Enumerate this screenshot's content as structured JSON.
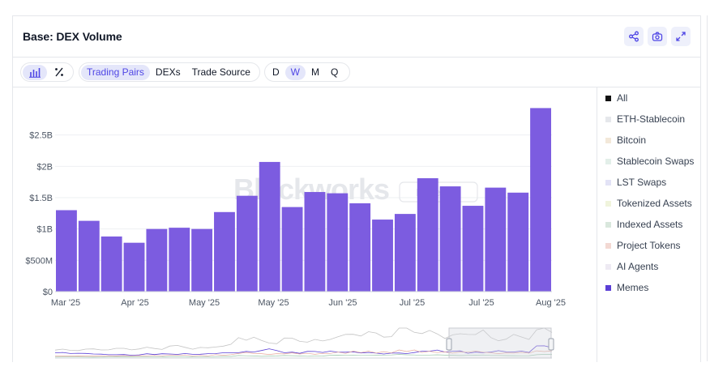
{
  "title": "Base: DEX Volume",
  "toolbar": {
    "groups": [
      {
        "name": "filter",
        "options": [
          "Trading Pairs",
          "DEXs",
          "Trade Source"
        ],
        "selected": "Trading Pairs"
      },
      {
        "name": "interval",
        "options": [
          "D",
          "W",
          "M",
          "Q"
        ],
        "selected": "W"
      }
    ]
  },
  "watermark": {
    "brand": "Blockworks",
    "tag": "Research"
  },
  "legend": {
    "items": [
      {
        "label": "All",
        "color": "#111111"
      },
      {
        "label": "ETH-Stablecoin",
        "color": "#e5e7eb"
      },
      {
        "label": "Bitcoin",
        "color": "#f3e8d9"
      },
      {
        "label": "Stablecoin Swaps",
        "color": "#e3efe9"
      },
      {
        "label": "LST Swaps",
        "color": "#e3e3f6"
      },
      {
        "label": "Tokenized Assets",
        "color": "#f0f4dc"
      },
      {
        "label": "Indexed Assets",
        "color": "#d9e7dd"
      },
      {
        "label": "Project Tokens",
        "color": "#f3d9d3"
      },
      {
        "label": "AI Agents",
        "color": "#eeeaf3"
      },
      {
        "label": "Memes",
        "color": "#5b3fd6"
      }
    ]
  },
  "chart_data": {
    "type": "bar",
    "title": "Base: DEX Volume",
    "series": [
      {
        "name": "Memes",
        "color": "#7c5ce0",
        "values": [
          1.3,
          1.13,
          0.88,
          0.78,
          1.0,
          1.02,
          1.0,
          1.27,
          1.53,
          2.07,
          1.35,
          1.59,
          1.57,
          1.41,
          1.15,
          1.24,
          1.81,
          1.68,
          1.37,
          1.66,
          1.58,
          2.93
        ]
      }
    ],
    "x_tick_labels": [
      "Mar '25",
      "Apr '25",
      "May '25",
      "May '25",
      "Jun '25",
      "Jul '25",
      "Jul '25",
      "Aug '25"
    ],
    "y_ticks": [
      "$0",
      "$500M",
      "$1B",
      "$1.5B",
      "$2B",
      "$2.5B"
    ],
    "y_unit": "$B",
    "ylim": [
      0,
      3.0
    ],
    "grid": true
  }
}
